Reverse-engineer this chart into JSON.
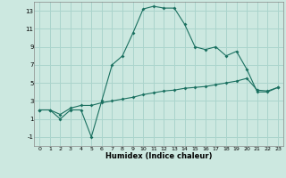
{
  "xlabel": "Humidex (Indice chaleur)",
  "background_color": "#cce8e0",
  "line_color": "#1a7060",
  "grid_color": "#aad4cc",
  "line1_x": [
    0,
    1,
    2,
    3,
    4,
    5,
    6,
    7,
    8,
    9,
    10,
    11,
    12,
    13,
    14,
    15,
    16,
    17,
    18,
    19,
    20,
    21,
    22,
    23
  ],
  "line1_y": [
    2,
    2,
    1,
    2,
    2,
    -1,
    3,
    7,
    8,
    10.5,
    13.2,
    13.5,
    13.3,
    13.3,
    11.5,
    9,
    8.7,
    9,
    8,
    8.5,
    6.5,
    4,
    4,
    4.5
  ],
  "line2_x": [
    0,
    1,
    2,
    3,
    4,
    5,
    6,
    7,
    8,
    9,
    10,
    11,
    12,
    13,
    14,
    15,
    16,
    17,
    18,
    19,
    20,
    21,
    22,
    23
  ],
  "line2_y": [
    2,
    2,
    1.5,
    2.2,
    2.5,
    2.5,
    2.8,
    3.0,
    3.2,
    3.4,
    3.7,
    3.9,
    4.1,
    4.2,
    4.4,
    4.5,
    4.6,
    4.8,
    5.0,
    5.2,
    5.5,
    4.2,
    4.1,
    4.5
  ],
  "ylim": [
    -2,
    14
  ],
  "yticks": [
    -1,
    1,
    3,
    5,
    7,
    9,
    11,
    13
  ],
  "xlim": [
    -0.5,
    23.5
  ],
  "xticks": [
    0,
    1,
    2,
    3,
    4,
    5,
    6,
    7,
    8,
    9,
    10,
    11,
    12,
    13,
    14,
    15,
    16,
    17,
    18,
    19,
    20,
    21,
    22,
    23
  ]
}
